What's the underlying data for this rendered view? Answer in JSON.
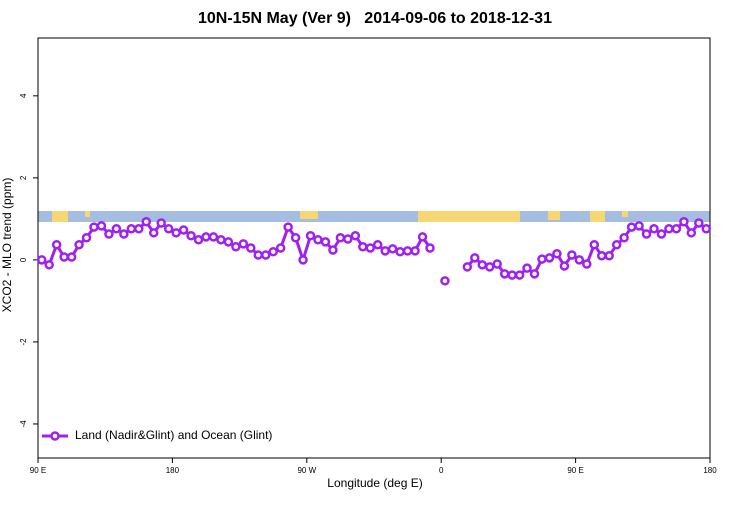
{
  "chart_data": {
    "type": "line",
    "title": "10N-15N May (Ver 9)   2014-09-06 to 2018-12-31",
    "xlabel": "Longitude (deg E)",
    "ylabel": "XCO2 - MLO trend (ppm)",
    "xlim": [
      90,
      540
    ],
    "ylim": [
      -4.83,
      5.41
    ],
    "xticks": [
      {
        "value": 90,
        "label": "90 E"
      },
      180,
      {
        "value": 270,
        "label": "90 W"
      },
      {
        "value": 360,
        "label": "0"
      },
      {
        "value": 450,
        "label": "90 E"
      },
      {
        "value": 540,
        "label": "180"
      }
    ],
    "yticks": [
      -4,
      -2,
      0,
      2,
      4
    ],
    "legend": "bottom-left",
    "x": [
      92.5,
      97.5,
      102.5,
      107.5,
      112.5,
      117.5,
      122.5,
      127.5,
      132.5,
      137.5,
      142.5,
      147.5,
      152.5,
      157.5,
      162.5,
      167.5,
      172.5,
      177.5,
      182.5,
      187.5,
      192.5,
      197.5,
      202.5,
      207.5,
      212.5,
      217.5,
      222.5,
      227.5,
      232.5,
      237.5,
      242.5,
      247.5,
      252.5,
      257.5,
      262.5,
      267.5,
      272.5,
      277.5,
      282.5,
      287.5,
      292.5,
      297.5,
      302.5,
      307.5,
      312.5,
      317.5,
      322.5,
      327.5,
      332.5,
      337.5,
      342.5,
      347.5,
      352.5,
      357.5,
      362.5,
      367.5,
      372.5,
      377.5,
      382.5,
      387.5,
      392.5,
      397.5,
      402.5,
      407.5,
      412.5,
      417.5,
      422.5,
      427.5,
      432.5,
      437.5,
      442.5,
      447.5,
      452.5,
      457.5,
      462.5,
      467.5,
      472.5,
      477.5,
      482.5,
      487.5,
      492.5,
      497.5,
      502.5,
      507.5,
      512.5,
      517.5,
      522.5,
      527.5,
      532.5,
      537.5
    ],
    "series": [
      {
        "name": "Land (Nadir&Glint) and Ocean (Glint)",
        "color": "#a020f0",
        "values": [
          0.0,
          -0.12,
          0.37,
          0.07,
          0.07,
          0.37,
          0.54,
          0.8,
          0.83,
          0.63,
          0.76,
          0.63,
          0.76,
          0.76,
          0.93,
          0.66,
          0.9,
          0.76,
          0.66,
          0.73,
          0.59,
          0.49,
          0.56,
          0.56,
          0.49,
          0.44,
          0.32,
          0.39,
          0.29,
          0.12,
          0.12,
          0.2,
          0.29,
          0.8,
          0.54,
          0.0,
          0.59,
          0.49,
          0.44,
          0.24,
          0.54,
          0.51,
          0.59,
          0.32,
          0.29,
          0.37,
          0.22,
          0.27,
          0.2,
          0.22,
          0.22,
          0.56,
          0.29,
          null,
          -0.51,
          null,
          null,
          -0.17,
          0.05,
          -0.12,
          -0.17,
          -0.1,
          -0.34,
          -0.37,
          -0.37,
          -0.2,
          -0.34,
          0.02,
          0.05,
          0.15,
          -0.15,
          0.12,
          0.0,
          -0.1,
          0.37,
          0.1,
          0.1,
          0.37,
          0.54,
          0.8,
          0.83,
          0.63,
          0.76,
          0.63,
          0.76,
          0.76,
          0.93,
          0.66,
          0.9,
          0.76
        ]
      }
    ]
  }
}
